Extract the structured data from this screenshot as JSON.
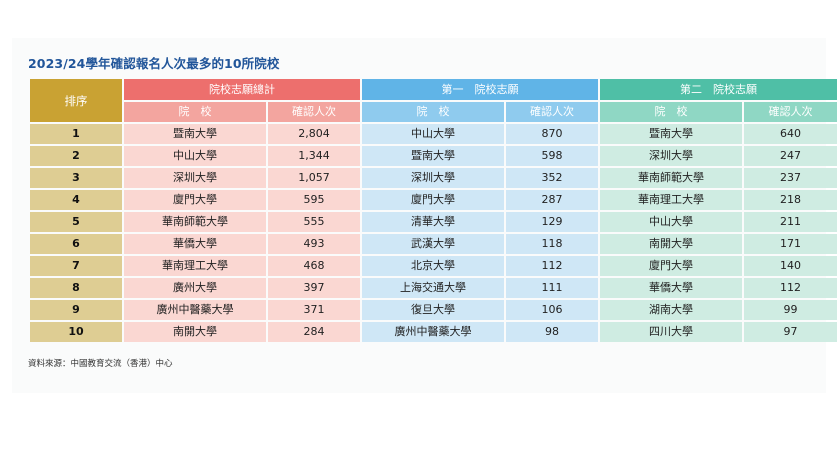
{
  "title": "2023/24學年確認報名人次最多的10所院校",
  "headers": {
    "rank": "排序",
    "group1": "院校志願總計",
    "group2": "第一　院校志願",
    "group3": "第二　院校志願",
    "school": "院　校",
    "count": "確認人次"
  },
  "rows": [
    {
      "rank": "1",
      "total_school": "暨南大學",
      "total_count": "2,804",
      "first_school": "中山大學",
      "first_count": "870",
      "second_school": "暨南大學",
      "second_count": "640"
    },
    {
      "rank": "2",
      "total_school": "中山大學",
      "total_count": "1,344",
      "first_school": "暨南大學",
      "first_count": "598",
      "second_school": "深圳大學",
      "second_count": "247"
    },
    {
      "rank": "3",
      "total_school": "深圳大學",
      "total_count": "1,057",
      "first_school": "深圳大學",
      "first_count": "352",
      "second_school": "華南師範大學",
      "second_count": "237"
    },
    {
      "rank": "4",
      "total_school": "廈門大學",
      "total_count": "595",
      "first_school": "廈門大學",
      "first_count": "287",
      "second_school": "華南理工大學",
      "second_count": "218"
    },
    {
      "rank": "5",
      "total_school": "華南師範大學",
      "total_count": "555",
      "first_school": "清華大學",
      "first_count": "129",
      "second_school": "中山大學",
      "second_count": "211"
    },
    {
      "rank": "6",
      "total_school": "華僑大學",
      "total_count": "493",
      "first_school": "武漢大學",
      "first_count": "118",
      "second_school": "南開大學",
      "second_count": "171"
    },
    {
      "rank": "7",
      "total_school": "華南理工大學",
      "total_count": "468",
      "first_school": "北京大學",
      "first_count": "112",
      "second_school": "廈門大學",
      "second_count": "140"
    },
    {
      "rank": "8",
      "total_school": "廣州大學",
      "total_count": "397",
      "first_school": "上海交通大學",
      "first_count": "111",
      "second_school": "華僑大學",
      "second_count": "112"
    },
    {
      "rank": "9",
      "total_school": "廣州中醫藥大學",
      "total_count": "371",
      "first_school": "復旦大學",
      "first_count": "106",
      "second_school": "湖南大學",
      "second_count": "99"
    },
    {
      "rank": "10",
      "total_school": "南開大學",
      "total_count": "284",
      "first_school": "廣州中醫藥大學",
      "first_count": "98",
      "second_school": "四川大學",
      "second_count": "97"
    }
  ],
  "source": "資料來源：中國教育交流（香港）中心",
  "colors": {
    "title": "#22569a",
    "rank_header": "#c9a233",
    "group1_header": "#ed6f6d",
    "group2_header": "#60b4e7",
    "group3_header": "#4fbfa6"
  }
}
